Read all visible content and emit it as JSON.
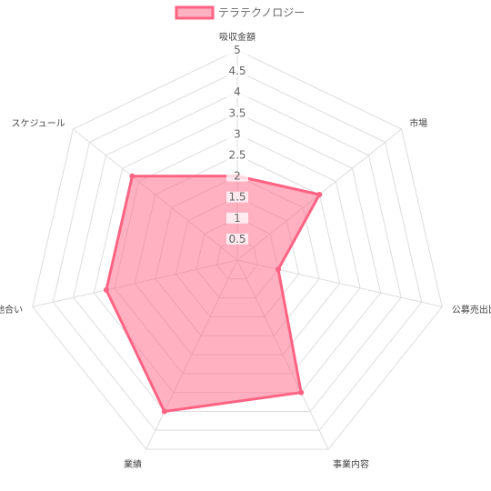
{
  "chart_data": {
    "type": "radar",
    "labels": [
      "吸収金額",
      "市場",
      "公募売出比",
      "事業内容",
      "業績",
      "地合い",
      "スケジュール"
    ],
    "series": [
      {
        "name": "テラテクノロジー",
        "values": [
          2,
          2.5,
          1,
          3.5,
          4,
          3.2,
          3.2
        ]
      }
    ],
    "r_min": 0,
    "r_max": 5,
    "ticks": [
      "0.5",
      "1",
      "1.5",
      "2",
      "2.5",
      "3",
      "3.5",
      "4",
      "4.5",
      "5"
    ],
    "legend_position": "top",
    "colors": {
      "series_line": "#ff6384",
      "series_fill": "rgba(255, 99, 132, 0.5)",
      "grid": "#dddddd",
      "legend_text": "#666666",
      "label_text": "#444444"
    }
  }
}
